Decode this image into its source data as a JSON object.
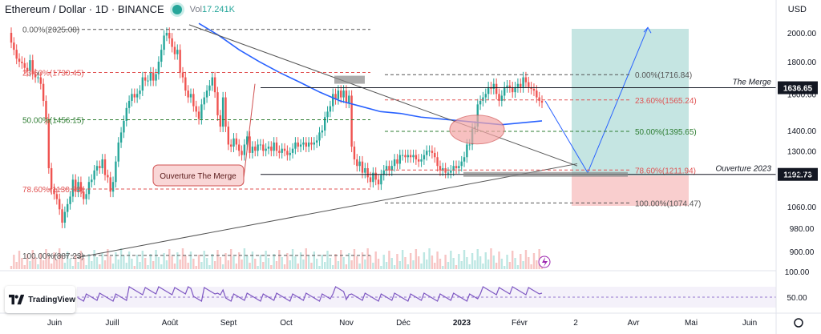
{
  "header": {
    "symbol": "Ethereum / Dollar · 1D · BINANCE",
    "volume_label": "Vol",
    "volume_value": "17.241K"
  },
  "price_axis": {
    "currency": "USD"
  },
  "branding": {
    "logo_text": "TradingView"
  },
  "chart_data": [
    {
      "type": "candlestick",
      "title": "Ethereum / Dollar · 1D · BINANCE",
      "x_labels": [
        "Juin",
        "Juill",
        "Août",
        "Sept",
        "Oct",
        "Nov",
        "Déc",
        "2023",
        "Févr",
        "2",
        "Avr",
        "Mai",
        "Juin"
      ],
      "y_ticks": [
        900,
        980,
        1060,
        1200,
        1300,
        1400,
        1600,
        1800,
        2000
      ],
      "y_range": [
        860,
        2300
      ],
      "y_scale": "log",
      "current_price": 1636.65,
      "horizontal_levels": [
        {
          "price": 1636.65,
          "label": "The Merge",
          "color": "#131722"
        },
        {
          "price": 1192.73,
          "label": "Ouverture 2023",
          "color": "#131722"
        }
      ],
      "fib_retracement_left": [
        {
          "level": "0.00%",
          "price": 2025.08,
          "color": "#555555"
        },
        {
          "level": "23.60%",
          "price": 1730.45,
          "color": "#e05252"
        },
        {
          "level": "50.00%",
          "price": 1456.15,
          "color": "#2e7d32"
        },
        {
          "level": "78.60%",
          "price": 1130.73,
          "color": "#e05252"
        },
        {
          "level": "100.00%",
          "price": 887.23,
          "color": "#555555"
        }
      ],
      "fib_retracement_right": [
        {
          "level": "0.00%",
          "price": 1716.84,
          "color": "#555555"
        },
        {
          "level": "23.60%",
          "price": 1565.24,
          "color": "#e05252"
        },
        {
          "level": "50.00%",
          "price": 1395.65,
          "color": "#2e7d32"
        },
        {
          "level": "78.60%",
          "price": 1211.94,
          "color": "#e05252"
        },
        {
          "level": "100.00%",
          "price": 1074.47,
          "color": "#555555"
        }
      ],
      "annotations": [
        {
          "text": "Ouverture The Merge"
        }
      ],
      "projection_target": 2025,
      "projection_stop": 1074,
      "closes": [
        1930,
        1880,
        1820,
        1800,
        1790,
        1760,
        1740,
        1810,
        1720,
        1700,
        1700,
        1660,
        1560,
        1460,
        1220,
        1130,
        1110,
        1090,
        1050,
        1000,
        1040,
        1070,
        1100,
        1170,
        1120,
        1160,
        1120,
        1090,
        1110,
        1160,
        1170,
        1210,
        1230,
        1220,
        1260,
        1190,
        1180,
        1120,
        1160,
        1250,
        1340,
        1390,
        1450,
        1520,
        1560,
        1600,
        1580,
        1600,
        1620,
        1700,
        1680,
        1680,
        1730,
        1680,
        1720,
        1800,
        1880,
        1980,
        2000,
        1960,
        1900,
        1850,
        1880,
        1730,
        1700,
        1620,
        1580,
        1600,
        1530,
        1500,
        1460,
        1540,
        1580,
        1620,
        1650,
        1700,
        1610,
        1480,
        1420,
        1580,
        1420,
        1330,
        1320,
        1360,
        1330,
        1300,
        1280,
        1330,
        1370,
        1290,
        1320,
        1300,
        1330,
        1330,
        1300,
        1310,
        1320,
        1300,
        1340,
        1300,
        1290,
        1310,
        1300,
        1280,
        1290,
        1310,
        1340,
        1320,
        1330,
        1340,
        1320,
        1340,
        1330,
        1340,
        1350,
        1390,
        1400,
        1470,
        1500,
        1530,
        1600,
        1570,
        1620,
        1580,
        1620,
        1550,
        1590,
        1320,
        1260,
        1230,
        1250,
        1200,
        1220,
        1180,
        1160,
        1200,
        1170,
        1150,
        1190,
        1210,
        1230,
        1210,
        1230,
        1260,
        1240,
        1280,
        1280,
        1270,
        1280,
        1270,
        1280,
        1260,
        1250,
        1260,
        1280,
        1300,
        1300,
        1290,
        1270,
        1230,
        1210,
        1220,
        1200,
        1200,
        1210,
        1230,
        1220,
        1230,
        1250,
        1270,
        1330,
        1330,
        1410,
        1420,
        1540,
        1560,
        1580,
        1600,
        1640,
        1630,
        1660,
        1600,
        1560,
        1590,
        1640,
        1650,
        1640,
        1610,
        1640,
        1660,
        1640,
        1700,
        1670,
        1640,
        1630,
        1620,
        1580,
        1560,
        1550
      ],
      "moving_average": [
        {
          "label": "MA",
          "color": "#2962ff",
          "values": [
            2070,
            1980,
            1880,
            1800,
            1730,
            1670,
            1610,
            1560,
            1530,
            1500,
            1490,
            1470,
            1460,
            1450,
            1440,
            1430,
            1440,
            1450
          ]
        }
      ],
      "rsi": {
        "reference_level": 50.0,
        "ticks": [
          100.0,
          50.0
        ]
      }
    }
  ]
}
